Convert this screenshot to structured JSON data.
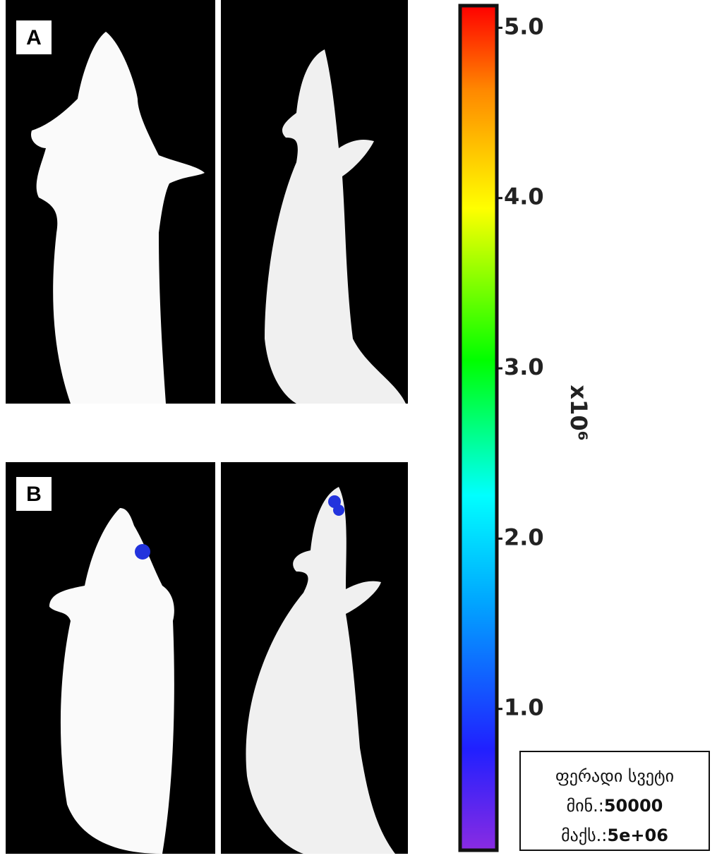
{
  "panels": [
    {
      "label": "A"
    },
    {
      "label": "B"
    }
  ],
  "colorbar": {
    "ylim": [
      0.17,
      5.13
    ],
    "yticks": [
      {
        "value": 1,
        "label": "1.0"
      },
      {
        "value": 2,
        "label": "2.0"
      },
      {
        "value": 3,
        "label": "3.0"
      },
      {
        "value": 4,
        "label": "4.0"
      },
      {
        "value": 5,
        "label": "5.0"
      }
    ],
    "unit_label": "x10⁶",
    "legend": {
      "title": "ფერადი სვეტი",
      "min_label": "მინ.:",
      "min": 50000,
      "max_label": "მაქს.:",
      "max": {
        "value": 5000000,
        "label": "5e+06"
      }
    }
  }
}
